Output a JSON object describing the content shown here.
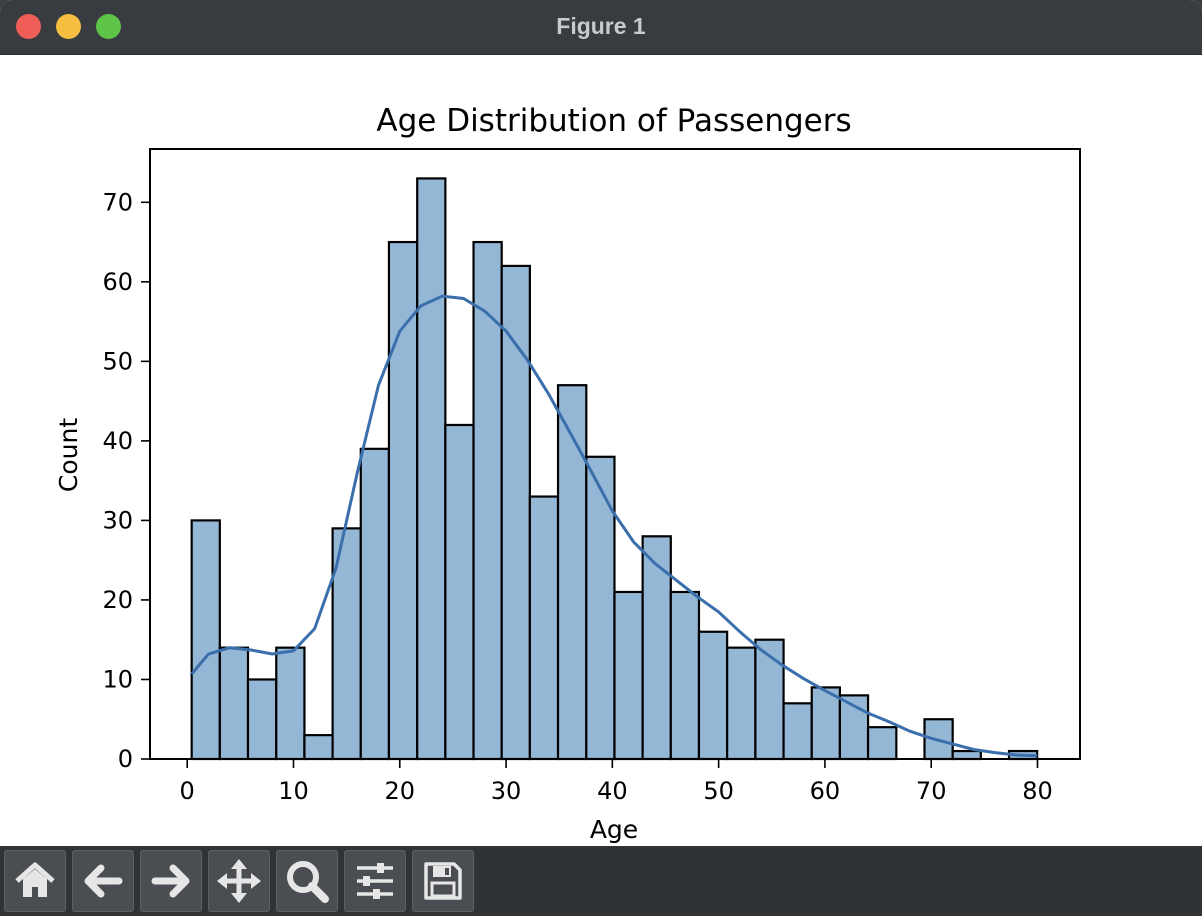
{
  "window": {
    "title": "Figure 1"
  },
  "toolbar": {
    "buttons": [
      {
        "icon": "home-icon",
        "label": "Home"
      },
      {
        "icon": "back-arrow-icon",
        "label": "Back"
      },
      {
        "icon": "forward-arrow-icon",
        "label": "Forward"
      },
      {
        "icon": "pan-icon",
        "label": "Pan"
      },
      {
        "icon": "zoom-icon",
        "label": "Zoom"
      },
      {
        "icon": "configure-subplots-icon",
        "label": "Configure subplots"
      },
      {
        "icon": "save-icon",
        "label": "Save"
      }
    ]
  },
  "colors": {
    "bar_fill": "#95b7d6",
    "bar_edge": "#000000",
    "kde_line": "#3a6fac"
  },
  "chart_data": {
    "type": "bar",
    "title": "Age Distribution of Passengers",
    "xlabel": "Age",
    "ylabel": "Count",
    "xlim": [
      -3.5,
      84
    ],
    "ylim": [
      0,
      76.7
    ],
    "xticks": [
      0,
      10,
      20,
      30,
      40,
      50,
      60,
      70,
      80
    ],
    "yticks": [
      0,
      10,
      20,
      30,
      40,
      50,
      60,
      70
    ],
    "bin_edges": [
      0.42,
      3.07,
      5.72,
      8.38,
      11.03,
      13.68,
      16.33,
      18.98,
      21.64,
      24.29,
      26.94,
      29.59,
      32.24,
      34.89,
      37.55,
      40.2,
      42.85,
      45.5,
      48.15,
      50.8,
      53.46,
      56.11,
      58.76,
      61.41,
      64.06,
      66.72,
      69.37,
      72.02,
      74.67,
      77.32,
      79.97
    ],
    "values": [
      30,
      14,
      10,
      14,
      3,
      29,
      39,
      65,
      73,
      42,
      65,
      62,
      33,
      47,
      38,
      21,
      28,
      21,
      16,
      14,
      15,
      7,
      9,
      8,
      4,
      0,
      5,
      1,
      0,
      1
    ],
    "kde": {
      "x": [
        0.42,
        2,
        4,
        6,
        8,
        10,
        12,
        14,
        16,
        18,
        20,
        22,
        24,
        26,
        28,
        30,
        32,
        34,
        36,
        38,
        40,
        42,
        44,
        46,
        48,
        50,
        52,
        54,
        56,
        58,
        60,
        62,
        64,
        66,
        68,
        70,
        72,
        74,
        76,
        78,
        79.97
      ],
      "y": [
        10.7,
        13.2,
        14.0,
        13.7,
        13.2,
        13.6,
        16.4,
        24.0,
        36.0,
        47.0,
        53.8,
        57.0,
        58.2,
        57.9,
        56.3,
        53.8,
        50.2,
        45.9,
        41.1,
        36.2,
        31.2,
        27.3,
        24.6,
        22.5,
        20.4,
        18.5,
        16.0,
        13.7,
        11.8,
        10.1,
        8.6,
        7.2,
        5.8,
        4.7,
        3.5,
        2.6,
        1.9,
        1.2,
        0.8,
        0.5,
        0.4
      ]
    }
  }
}
